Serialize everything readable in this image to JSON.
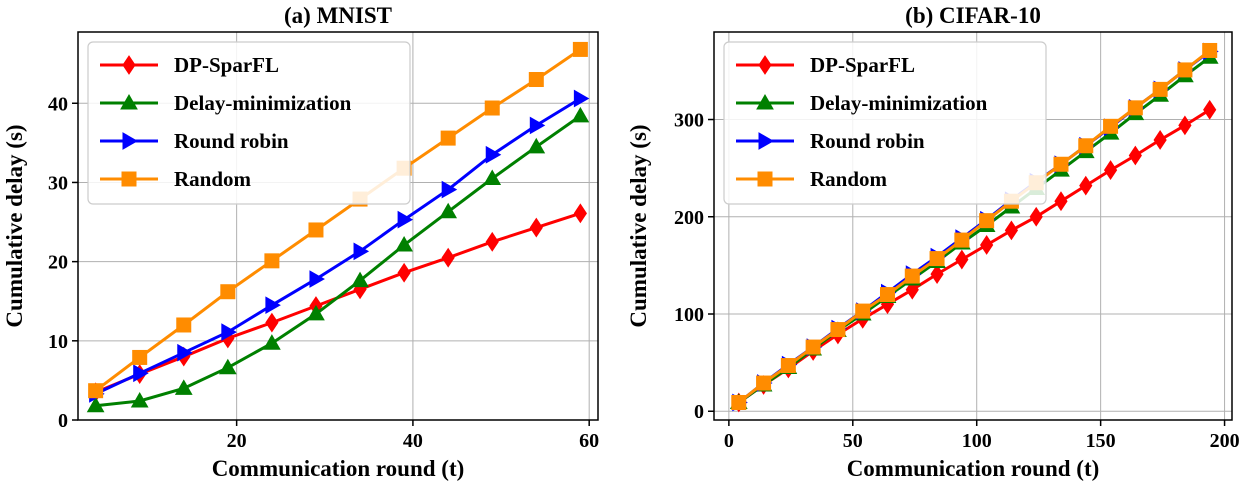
{
  "chart_data": [
    {
      "type": "line",
      "title": "(a) MNIST",
      "xlabel": "Communication round (t)",
      "ylabel": "Cumulative delay (s)",
      "xlim": [
        2,
        61
      ],
      "ylim": [
        0,
        49
      ],
      "xticks": [
        20,
        40,
        60
      ],
      "yticks": [
        0,
        10,
        20,
        30,
        40
      ],
      "grid": true,
      "legend_position": "top-left",
      "series": [
        {
          "name": "DP-SparFL",
          "color": "#ff0000",
          "marker": "diamond",
          "x": [
            4,
            9,
            14,
            19,
            24,
            29,
            34,
            39,
            44,
            49,
            54,
            59
          ],
          "y": [
            3.5,
            5.8,
            8.0,
            10.3,
            12.3,
            14.4,
            16.5,
            18.6,
            20.5,
            22.5,
            24.3,
            26.1
          ]
        },
        {
          "name": "Delay-minimization",
          "color": "#008000",
          "marker": "triangle-up",
          "x": [
            4,
            9,
            14,
            19,
            24,
            29,
            34,
            39,
            44,
            49,
            54,
            59
          ],
          "y": [
            1.8,
            2.4,
            4.0,
            6.6,
            9.7,
            13.4,
            17.6,
            22.1,
            26.3,
            30.5,
            34.5,
            38.4
          ]
        },
        {
          "name": "Round robin",
          "color": "#0000ff",
          "marker": "triangle-right",
          "x": [
            4,
            9,
            14,
            19,
            24,
            29,
            34,
            39,
            44,
            49,
            54,
            59
          ],
          "y": [
            3.3,
            5.9,
            8.5,
            11.1,
            14.5,
            17.8,
            21.3,
            25.3,
            29.1,
            33.5,
            37.2,
            40.6
          ]
        },
        {
          "name": "Random",
          "color": "#ff8c00",
          "marker": "square",
          "x": [
            4,
            9,
            14,
            19,
            24,
            29,
            34,
            39,
            44,
            49,
            54,
            59
          ],
          "y": [
            3.7,
            7.9,
            12.0,
            16.2,
            20.1,
            24.0,
            27.9,
            31.8,
            35.6,
            39.4,
            43.0,
            46.8
          ]
        }
      ]
    },
    {
      "type": "line",
      "title": "(b) CIFAR-10",
      "xlabel": "Communication round (t)",
      "ylabel": "Cumulative delay (s)",
      "xlim": [
        -6,
        203
      ],
      "ylim": [
        -9,
        390
      ],
      "xticks": [
        0,
        50,
        100,
        150,
        200
      ],
      "yticks": [
        0,
        100,
        200,
        300
      ],
      "grid": true,
      "legend_position": "top-left",
      "series": [
        {
          "name": "DP-SparFL",
          "color": "#ff0000",
          "marker": "diamond",
          "x": [
            4,
            14,
            24,
            34,
            44,
            54,
            64,
            74,
            84,
            94,
            104,
            114,
            124,
            134,
            144,
            154,
            164,
            174,
            184,
            194
          ],
          "y": [
            9,
            27,
            44,
            62,
            79,
            95,
            110,
            125,
            141,
            156,
            171,
            186,
            200,
            216,
            232,
            248,
            263,
            279,
            294,
            310
          ]
        },
        {
          "name": "Delay-minimization",
          "color": "#008000",
          "marker": "triangle-up",
          "x": [
            4,
            14,
            24,
            34,
            44,
            54,
            64,
            74,
            84,
            94,
            104,
            114,
            124,
            134,
            144,
            154,
            164,
            174,
            184,
            194
          ],
          "y": [
            9,
            27,
            45,
            64,
            83,
            100,
            118,
            136,
            154,
            173,
            191,
            210,
            229,
            248,
            267,
            286,
            306,
            325,
            345,
            364
          ]
        },
        {
          "name": "Round robin",
          "color": "#0000ff",
          "marker": "triangle-right",
          "x": [
            4,
            14,
            24,
            34,
            44,
            54,
            64,
            74,
            84,
            94,
            104,
            114,
            124,
            134,
            144,
            154,
            164,
            174,
            184,
            194
          ],
          "y": [
            9,
            29,
            48,
            66,
            85,
            103,
            122,
            141,
            159,
            178,
            197,
            217,
            236,
            254,
            273,
            292,
            312,
            331,
            351,
            370
          ]
        },
        {
          "name": "Random",
          "color": "#ff8c00",
          "marker": "square",
          "x": [
            4,
            14,
            24,
            34,
            44,
            54,
            64,
            74,
            84,
            94,
            104,
            114,
            124,
            134,
            144,
            154,
            164,
            174,
            184,
            194
          ],
          "y": [
            9,
            29,
            47,
            66,
            84,
            103,
            120,
            139,
            157,
            176,
            196,
            216,
            235,
            254,
            273,
            293,
            312,
            331,
            351,
            371
          ]
        }
      ]
    }
  ]
}
